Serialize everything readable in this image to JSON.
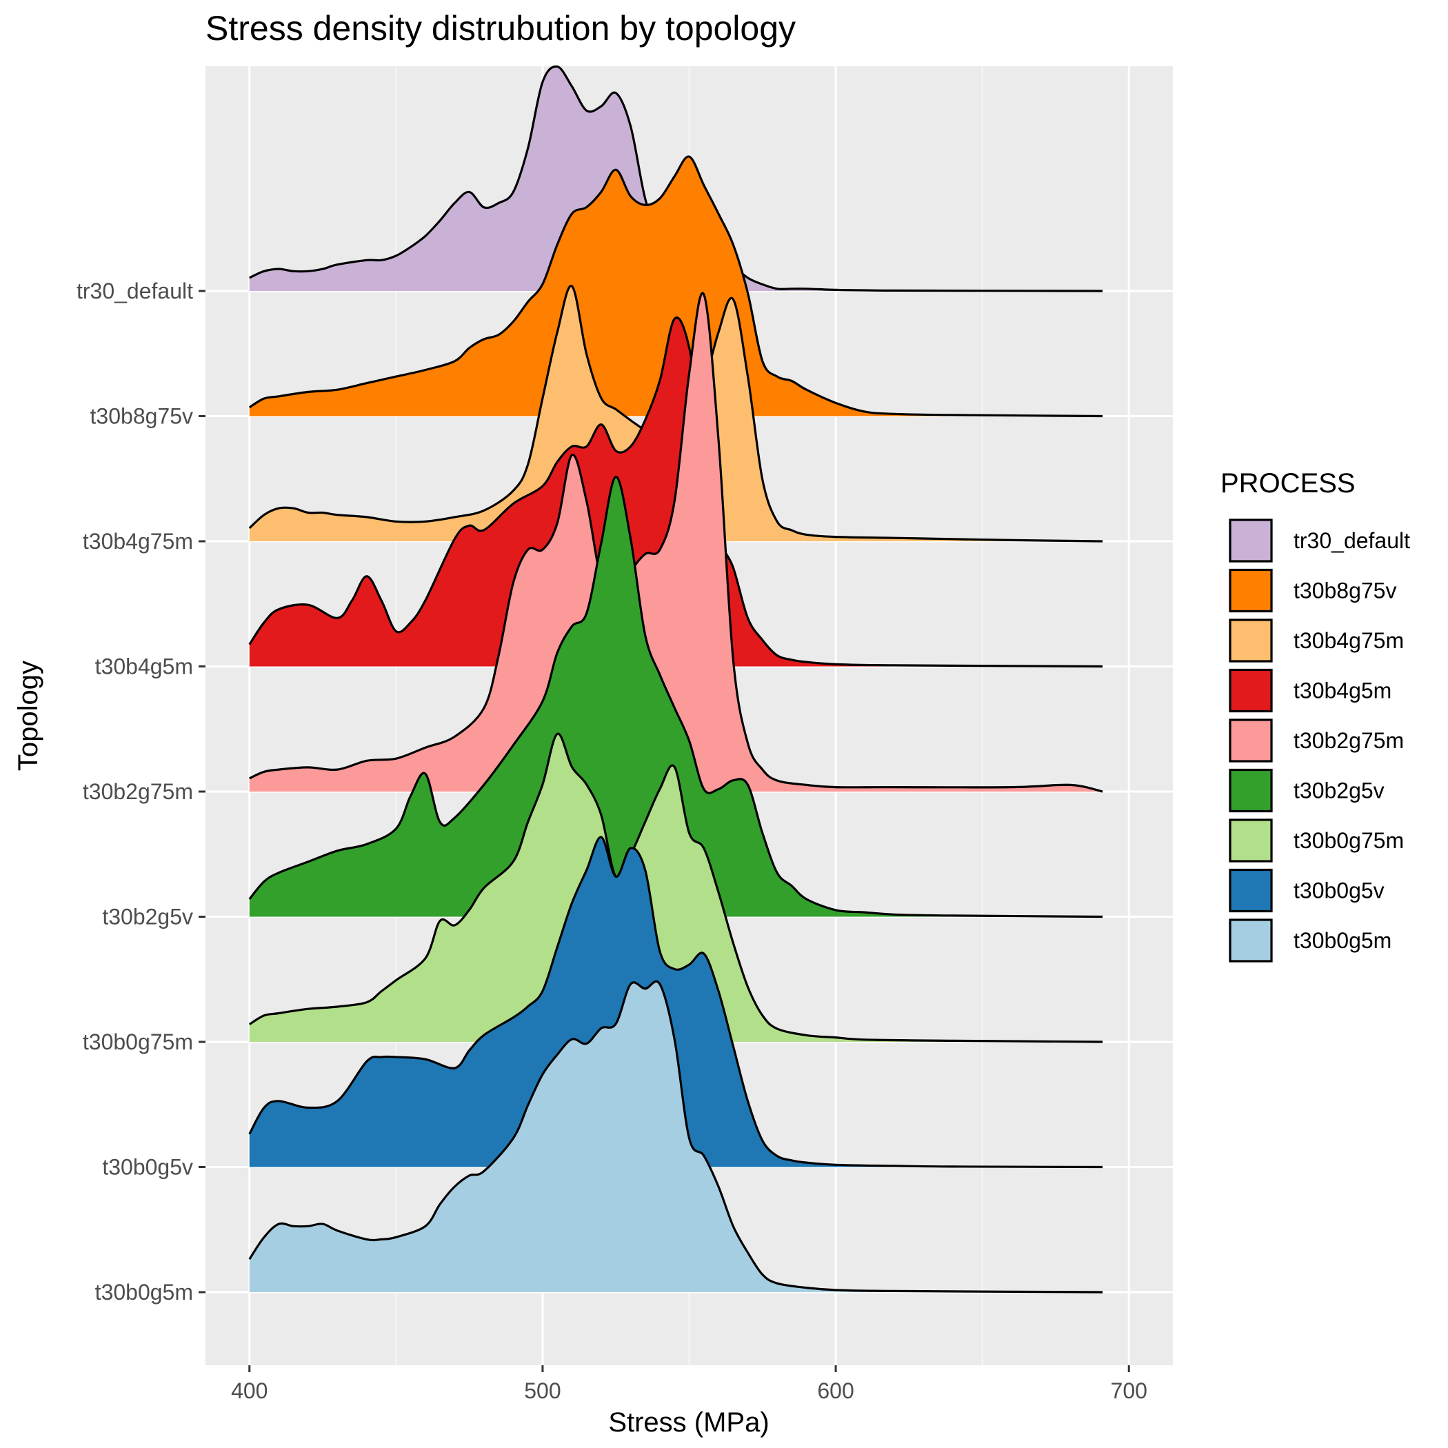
{
  "chart_data": {
    "type": "ridgeline",
    "title": "Stress density distrubution by topology",
    "xlabel": "Stress (MPa)",
    "ylabel": "Topology",
    "xlim": [
      385,
      715
    ],
    "x_ticks": [
      400,
      500,
      600,
      700
    ],
    "grid": true,
    "legend": {
      "title": "PROCESS",
      "position": "right"
    },
    "series": [
      {
        "name": "tr30_default",
        "color": "#cab2d6",
        "x": [
          400,
          405,
          410,
          415,
          420,
          425,
          430,
          440,
          445,
          450,
          455,
          460,
          465,
          470,
          475,
          480,
          485,
          490,
          495,
          500,
          505,
          510,
          515,
          520,
          525,
          530,
          535,
          540,
          545,
          550,
          555,
          560,
          565,
          570,
          575,
          580,
          585,
          590,
          600,
          610,
          620,
          650,
          691
        ],
        "y": [
          0.06,
          0.09,
          0.1,
          0.09,
          0.09,
          0.1,
          0.12,
          0.14,
          0.14,
          0.16,
          0.2,
          0.25,
          0.32,
          0.4,
          0.45,
          0.38,
          0.4,
          0.45,
          0.65,
          0.95,
          1.02,
          0.93,
          0.82,
          0.84,
          0.9,
          0.75,
          0.42,
          0.24,
          0.34,
          0.44,
          0.36,
          0.22,
          0.12,
          0.06,
          0.03,
          0.01,
          0.01,
          0.01,
          0.005,
          0.003,
          0.002,
          0.001,
          0.0
        ]
      },
      {
        "name": "t30b8g75v",
        "color": "#ff7f00",
        "x": [
          400,
          405,
          410,
          420,
          430,
          440,
          450,
          460,
          470,
          475,
          480,
          485,
          490,
          495,
          500,
          505,
          510,
          515,
          520,
          525,
          530,
          535,
          540,
          545,
          550,
          555,
          560,
          565,
          570,
          575,
          580,
          585,
          590,
          600,
          610,
          620,
          640,
          691
        ],
        "y": [
          0.04,
          0.08,
          0.09,
          0.11,
          0.12,
          0.15,
          0.18,
          0.21,
          0.25,
          0.31,
          0.35,
          0.37,
          0.43,
          0.52,
          0.6,
          0.78,
          0.92,
          0.95,
          1.02,
          1.12,
          1.0,
          0.96,
          0.99,
          1.09,
          1.18,
          1.05,
          0.92,
          0.78,
          0.56,
          0.25,
          0.18,
          0.16,
          0.12,
          0.06,
          0.02,
          0.01,
          0.005,
          0.0
        ]
      },
      {
        "name": "t30b4g75m",
        "color": "#fdbf6f",
        "x": [
          400,
          405,
          410,
          415,
          420,
          425,
          430,
          440,
          450,
          460,
          470,
          480,
          490,
          495,
          500,
          505,
          510,
          515,
          520,
          525,
          530,
          535,
          540,
          545,
          550,
          555,
          560,
          565,
          570,
          575,
          580,
          585,
          590,
          600,
          620,
          640,
          660,
          691
        ],
        "y": [
          0.06,
          0.12,
          0.15,
          0.15,
          0.13,
          0.13,
          0.12,
          0.11,
          0.09,
          0.09,
          0.11,
          0.14,
          0.23,
          0.35,
          0.65,
          0.95,
          1.16,
          0.85,
          0.65,
          0.6,
          0.55,
          0.5,
          0.42,
          0.44,
          0.48,
          0.7,
          0.95,
          1.1,
          0.75,
          0.28,
          0.09,
          0.05,
          0.03,
          0.02,
          0.015,
          0.01,
          0.005,
          0.0
        ]
      },
      {
        "name": "t30b4g5m",
        "color": "#e31a1c",
        "x": [
          400,
          405,
          410,
          420,
          430,
          435,
          440,
          445,
          450,
          455,
          460,
          470,
          475,
          480,
          490,
          500,
          505,
          510,
          515,
          520,
          525,
          530,
          535,
          540,
          545,
          550,
          555,
          560,
          565,
          570,
          575,
          580,
          585,
          590,
          600,
          620,
          691
        ],
        "y": [
          0.1,
          0.2,
          0.26,
          0.28,
          0.22,
          0.3,
          0.41,
          0.3,
          0.16,
          0.2,
          0.3,
          0.58,
          0.64,
          0.62,
          0.74,
          0.82,
          0.93,
          1.0,
          1.0,
          1.1,
          0.98,
          1.0,
          1.12,
          1.3,
          1.58,
          1.45,
          1.0,
          0.6,
          0.45,
          0.22,
          0.12,
          0.05,
          0.03,
          0.02,
          0.01,
          0.005,
          0.0
        ]
      },
      {
        "name": "t30b2g75m",
        "color": "#fb9a99",
        "x": [
          400,
          405,
          410,
          420,
          430,
          440,
          450,
          460,
          470,
          480,
          485,
          490,
          495,
          500,
          505,
          510,
          515,
          520,
          525,
          530,
          535,
          540,
          545,
          550,
          555,
          560,
          565,
          570,
          575,
          580,
          590,
          600,
          620,
          660,
          680,
          691
        ],
        "y": [
          0.06,
          0.09,
          0.1,
          0.11,
          0.1,
          0.14,
          0.15,
          0.2,
          0.25,
          0.38,
          0.62,
          0.95,
          1.1,
          1.1,
          1.22,
          1.53,
          1.32,
          0.96,
          0.88,
          1.0,
          1.08,
          1.1,
          1.32,
          1.9,
          2.26,
          1.6,
          0.6,
          0.22,
          0.1,
          0.05,
          0.03,
          0.02,
          0.02,
          0.02,
          0.03,
          0.0
        ]
      },
      {
        "name": "t30b2g5v",
        "color": "#33a02c",
        "x": [
          400,
          405,
          410,
          420,
          430,
          440,
          450,
          455,
          460,
          465,
          470,
          480,
          490,
          500,
          505,
          510,
          515,
          520,
          525,
          530,
          535,
          540,
          545,
          550,
          555,
          560,
          565,
          570,
          575,
          580,
          585,
          590,
          600,
          610,
          620,
          640,
          691
        ],
        "y": [
          0.08,
          0.16,
          0.2,
          0.25,
          0.3,
          0.33,
          0.4,
          0.55,
          0.65,
          0.43,
          0.45,
          0.6,
          0.78,
          0.98,
          1.2,
          1.32,
          1.38,
          1.7,
          2.0,
          1.72,
          1.28,
          1.1,
          0.95,
          0.8,
          0.58,
          0.58,
          0.62,
          0.6,
          0.38,
          0.2,
          0.14,
          0.08,
          0.03,
          0.02,
          0.01,
          0.005,
          0.0
        ]
      },
      {
        "name": "t30b0g75m",
        "color": "#b2df8a",
        "x": [
          400,
          405,
          410,
          420,
          430,
          440,
          445,
          450,
          460,
          465,
          470,
          475,
          480,
          490,
          495,
          500,
          505,
          510,
          515,
          520,
          525,
          530,
          535,
          540,
          545,
          550,
          555,
          560,
          565,
          570,
          575,
          580,
          590,
          600,
          610,
          640,
          691
        ],
        "y": [
          0.08,
          0.12,
          0.13,
          0.15,
          0.16,
          0.18,
          0.23,
          0.28,
          0.38,
          0.55,
          0.53,
          0.6,
          0.7,
          0.82,
          1.0,
          1.17,
          1.4,
          1.25,
          1.17,
          1.03,
          0.75,
          0.85,
          1.0,
          1.15,
          1.25,
          0.95,
          0.88,
          0.68,
          0.45,
          0.25,
          0.12,
          0.06,
          0.03,
          0.02,
          0.01,
          0.005,
          0.0
        ]
      },
      {
        "name": "t30b0g5v",
        "color": "#1f78b4",
        "x": [
          400,
          405,
          410,
          420,
          430,
          440,
          445,
          450,
          460,
          470,
          475,
          480,
          490,
          495,
          500,
          505,
          510,
          515,
          520,
          525,
          530,
          535,
          540,
          545,
          550,
          555,
          560,
          565,
          570,
          575,
          580,
          585,
          590,
          600,
          620,
          640,
          691
        ],
        "y": [
          0.15,
          0.27,
          0.3,
          0.27,
          0.3,
          0.48,
          0.5,
          0.5,
          0.49,
          0.45,
          0.53,
          0.6,
          0.68,
          0.73,
          0.8,
          1.0,
          1.2,
          1.35,
          1.5,
          1.32,
          1.45,
          1.35,
          0.98,
          0.9,
          0.92,
          0.97,
          0.8,
          0.55,
          0.3,
          0.12,
          0.05,
          0.03,
          0.02,
          0.01,
          0.005,
          0.002,
          0.0
        ]
      },
      {
        "name": "t30b0g5m",
        "color": "#a6cee3",
        "x": [
          400,
          405,
          410,
          415,
          420,
          425,
          430,
          440,
          445,
          450,
          460,
          465,
          470,
          475,
          480,
          490,
          495,
          500,
          505,
          510,
          515,
          520,
          525,
          530,
          535,
          540,
          545,
          550,
          555,
          560,
          565,
          570,
          575,
          580,
          590,
          600,
          620,
          691
        ],
        "y": [
          0.15,
          0.25,
          0.31,
          0.3,
          0.3,
          0.31,
          0.28,
          0.24,
          0.24,
          0.25,
          0.3,
          0.4,
          0.48,
          0.53,
          0.55,
          0.7,
          0.85,
          0.99,
          1.08,
          1.15,
          1.13,
          1.2,
          1.22,
          1.4,
          1.38,
          1.4,
          1.15,
          0.7,
          0.62,
          0.48,
          0.3,
          0.18,
          0.08,
          0.04,
          0.02,
          0.01,
          0.005,
          0.0
        ]
      }
    ]
  }
}
